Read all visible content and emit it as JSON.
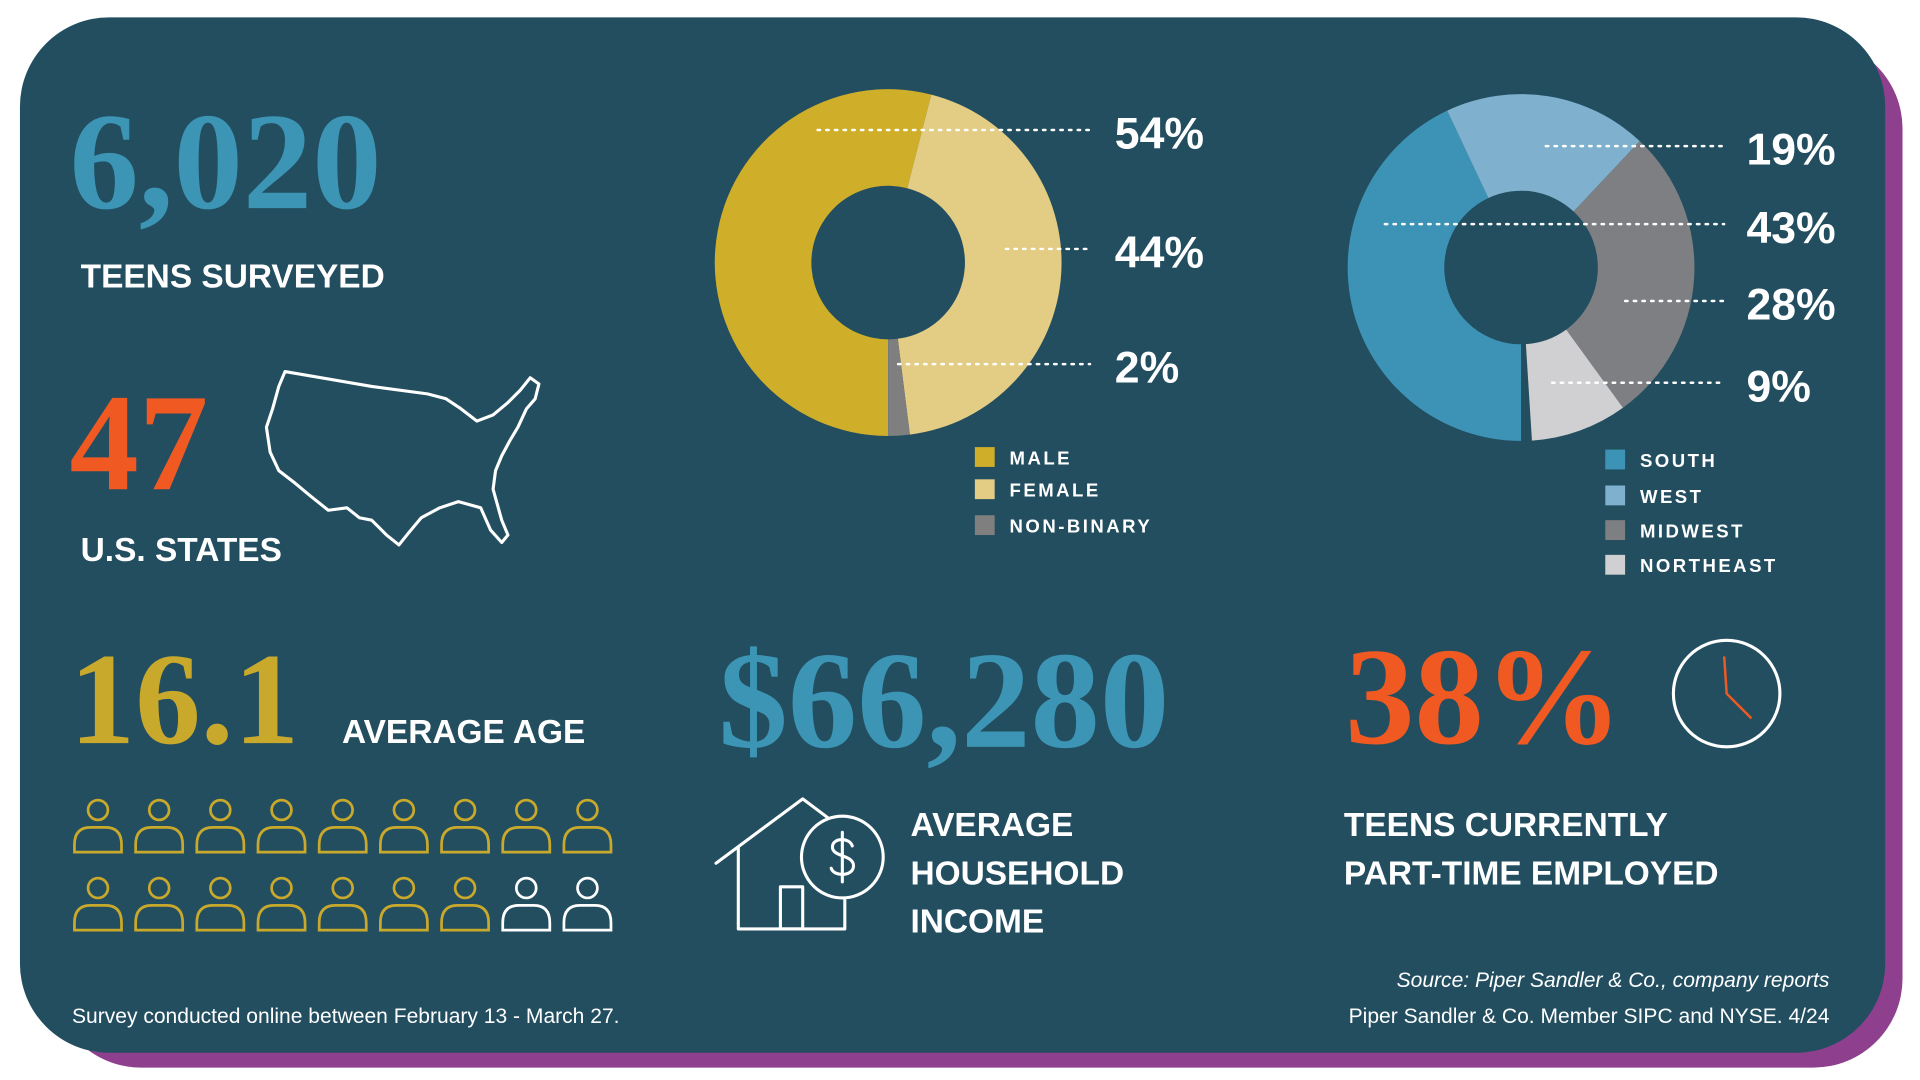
{
  "stats": {
    "teens": {
      "value": "6,020",
      "label": "TEENS SURVEYED"
    },
    "states": {
      "value": "47",
      "label": "U.S. STATES"
    },
    "age": {
      "value": "16.1",
      "label": "AVERAGE AGE"
    },
    "income": {
      "value": "$66,280",
      "label_lines": [
        "AVERAGE",
        "HOUSEHOLD",
        "INCOME"
      ]
    },
    "employed": {
      "value": "38%",
      "label_lines": [
        "TEENS CURRENTLY",
        "PART-TIME EMPLOYED"
      ]
    }
  },
  "chart_data": [
    {
      "type": "pie",
      "donut": true,
      "categories": [
        "MALE",
        "FEMALE",
        "NON-BINARY"
      ],
      "values": [
        54,
        44,
        2
      ],
      "value_labels": [
        "54%",
        "44%",
        "2%"
      ],
      "colors": [
        "#cfae2a",
        "#e3cc83",
        "#7f7f7f"
      ]
    },
    {
      "type": "pie",
      "donut": true,
      "categories": [
        "SOUTH",
        "WEST",
        "MIDWEST",
        "NORTHEAST"
      ],
      "values": [
        43,
        19,
        28,
        9
      ],
      "value_labels": [
        "43%",
        "19%",
        "28%",
        "9%"
      ],
      "colors": [
        "#3d93b6",
        "#7fb1ce",
        "#7e7f83",
        "#d0d0d2"
      ]
    }
  ],
  "footer": {
    "note": "Survey conducted online between February 13 - March 27.",
    "source": "Source: Piper Sandler & Co., company reports",
    "member": "Piper Sandler & Co. Member SIPC and NYSE. 4/24"
  }
}
